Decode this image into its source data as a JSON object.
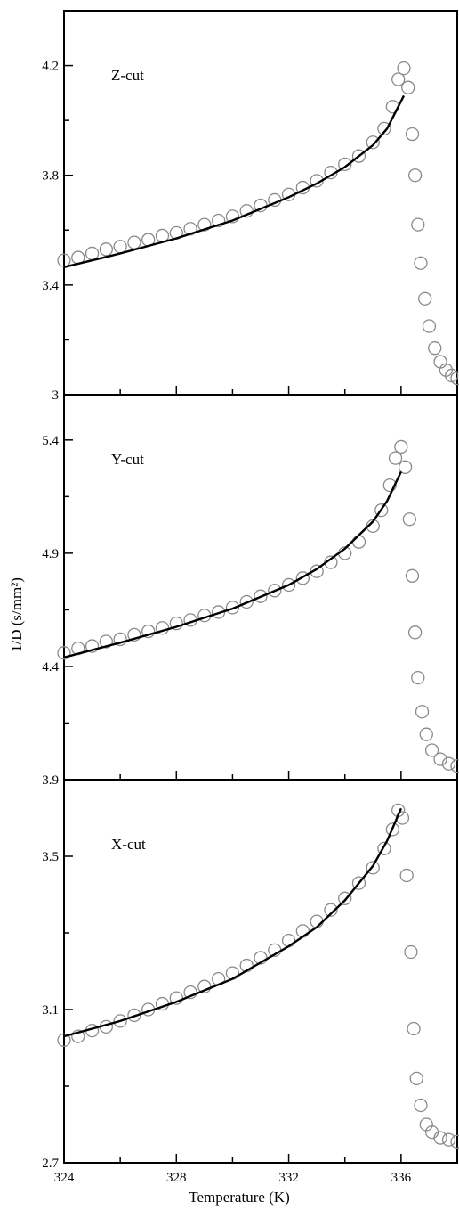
{
  "chart_data": {
    "type": "scatter",
    "xlabel": "Temperature (K)",
    "ylabel": "1/D (s/mm²)",
    "xlim": [
      324,
      338
    ],
    "xticks": [
      324,
      328,
      332,
      336
    ],
    "xtick_labels": [
      "324",
      "328",
      "332",
      "336"
    ],
    "grid": false,
    "marker_color": "#8a8a8a",
    "fit_color": "#000000",
    "panels": [
      {
        "label": "Z-cut",
        "ylim": [
          3.0,
          4.4
        ],
        "yticks": [
          3.0,
          3.4,
          3.8,
          4.2
        ],
        "ytick_labels": [
          "3",
          "3.4",
          "3.8",
          "4.2"
        ],
        "points": [
          [
            324.0,
            3.49
          ],
          [
            324.5,
            3.5
          ],
          [
            325.0,
            3.515
          ],
          [
            325.5,
            3.53
          ],
          [
            326.0,
            3.54
          ],
          [
            326.5,
            3.555
          ],
          [
            327.0,
            3.565
          ],
          [
            327.5,
            3.58
          ],
          [
            328.0,
            3.59
          ],
          [
            328.5,
            3.605
          ],
          [
            329.0,
            3.62
          ],
          [
            329.5,
            3.635
          ],
          [
            330.0,
            3.65
          ],
          [
            330.5,
            3.67
          ],
          [
            331.0,
            3.69
          ],
          [
            331.5,
            3.71
          ],
          [
            332.0,
            3.73
          ],
          [
            332.5,
            3.755
          ],
          [
            333.0,
            3.78
          ],
          [
            333.5,
            3.81
          ],
          [
            334.0,
            3.84
          ],
          [
            334.5,
            3.87
          ],
          [
            335.0,
            3.92
          ],
          [
            335.4,
            3.97
          ],
          [
            335.7,
            4.05
          ],
          [
            335.9,
            4.15
          ],
          [
            336.1,
            4.19
          ],
          [
            336.25,
            4.12
          ],
          [
            336.4,
            3.95
          ],
          [
            336.5,
            3.8
          ],
          [
            336.6,
            3.62
          ],
          [
            336.7,
            3.48
          ],
          [
            336.85,
            3.35
          ],
          [
            337.0,
            3.25
          ],
          [
            337.2,
            3.17
          ],
          [
            337.4,
            3.12
          ],
          [
            337.6,
            3.09
          ],
          [
            337.8,
            3.07
          ],
          [
            338.0,
            3.06
          ]
        ],
        "fit": [
          [
            324.0,
            3.465
          ],
          [
            326.0,
            3.515
          ],
          [
            328.0,
            3.57
          ],
          [
            330.0,
            3.635
          ],
          [
            332.0,
            3.72
          ],
          [
            333.0,
            3.77
          ],
          [
            334.0,
            3.83
          ],
          [
            335.0,
            3.91
          ],
          [
            335.5,
            3.97
          ],
          [
            336.1,
            4.09
          ]
        ]
      },
      {
        "label": "Y-cut",
        "ylim": [
          3.9,
          5.6
        ],
        "yticks": [
          3.9,
          4.4,
          4.9,
          5.4
        ],
        "ytick_labels": [
          "3.9",
          "4.4",
          "4.9",
          "5.4"
        ],
        "points": [
          [
            324.0,
            4.46
          ],
          [
            324.5,
            4.48
          ],
          [
            325.0,
            4.49
          ],
          [
            325.5,
            4.51
          ],
          [
            326.0,
            4.52
          ],
          [
            326.5,
            4.54
          ],
          [
            327.0,
            4.555
          ],
          [
            327.5,
            4.57
          ],
          [
            328.0,
            4.59
          ],
          [
            328.5,
            4.605
          ],
          [
            329.0,
            4.625
          ],
          [
            329.5,
            4.64
          ],
          [
            330.0,
            4.66
          ],
          [
            330.5,
            4.685
          ],
          [
            331.0,
            4.71
          ],
          [
            331.5,
            4.735
          ],
          [
            332.0,
            4.76
          ],
          [
            332.5,
            4.79
          ],
          [
            333.0,
            4.82
          ],
          [
            333.5,
            4.86
          ],
          [
            334.0,
            4.9
          ],
          [
            334.5,
            4.95
          ],
          [
            335.0,
            5.02
          ],
          [
            335.3,
            5.09
          ],
          [
            335.6,
            5.2
          ],
          [
            335.8,
            5.32
          ],
          [
            336.0,
            5.37
          ],
          [
            336.15,
            5.28
          ],
          [
            336.3,
            5.05
          ],
          [
            336.4,
            4.8
          ],
          [
            336.5,
            4.55
          ],
          [
            336.6,
            4.35
          ],
          [
            336.75,
            4.2
          ],
          [
            336.9,
            4.1
          ],
          [
            337.1,
            4.03
          ],
          [
            337.4,
            3.99
          ],
          [
            337.7,
            3.97
          ],
          [
            338.0,
            3.96
          ]
        ],
        "fit": [
          [
            324.0,
            4.44
          ],
          [
            326.0,
            4.505
          ],
          [
            328.0,
            4.575
          ],
          [
            330.0,
            4.655
          ],
          [
            332.0,
            4.76
          ],
          [
            333.0,
            4.83
          ],
          [
            334.0,
            4.92
          ],
          [
            335.0,
            5.04
          ],
          [
            335.5,
            5.13
          ],
          [
            336.0,
            5.26
          ]
        ]
      },
      {
        "label": "X-cut",
        "ylim": [
          2.7,
          3.7
        ],
        "yticks": [
          2.7,
          3.1,
          3.5
        ],
        "ytick_labels": [
          "2.7",
          "3.1",
          "3.5"
        ],
        "points": [
          [
            324.0,
            3.02
          ],
          [
            324.5,
            3.03
          ],
          [
            325.0,
            3.045
          ],
          [
            325.5,
            3.055
          ],
          [
            326.0,
            3.07
          ],
          [
            326.5,
            3.085
          ],
          [
            327.0,
            3.1
          ],
          [
            327.5,
            3.115
          ],
          [
            328.0,
            3.13
          ],
          [
            328.5,
            3.145
          ],
          [
            329.0,
            3.16
          ],
          [
            329.5,
            3.18
          ],
          [
            330.0,
            3.195
          ],
          [
            330.5,
            3.215
          ],
          [
            331.0,
            3.235
          ],
          [
            331.5,
            3.255
          ],
          [
            332.0,
            3.28
          ],
          [
            332.5,
            3.305
          ],
          [
            333.0,
            3.33
          ],
          [
            333.5,
            3.36
          ],
          [
            334.0,
            3.39
          ],
          [
            334.5,
            3.43
          ],
          [
            335.0,
            3.47
          ],
          [
            335.4,
            3.52
          ],
          [
            335.7,
            3.57
          ],
          [
            335.9,
            3.62
          ],
          [
            336.05,
            3.6
          ],
          [
            336.2,
            3.45
          ],
          [
            336.35,
            3.25
          ],
          [
            336.45,
            3.05
          ],
          [
            336.55,
            2.92
          ],
          [
            336.7,
            2.85
          ],
          [
            336.9,
            2.8
          ],
          [
            337.1,
            2.78
          ],
          [
            337.4,
            2.765
          ],
          [
            337.7,
            2.76
          ],
          [
            338.0,
            2.755
          ]
        ],
        "fit": [
          [
            324.0,
            3.03
          ],
          [
            326.0,
            3.07
          ],
          [
            328.0,
            3.12
          ],
          [
            330.0,
            3.18
          ],
          [
            332.0,
            3.265
          ],
          [
            333.0,
            3.315
          ],
          [
            334.0,
            3.385
          ],
          [
            335.0,
            3.475
          ],
          [
            335.5,
            3.54
          ],
          [
            336.0,
            3.625
          ]
        ]
      }
    ]
  }
}
